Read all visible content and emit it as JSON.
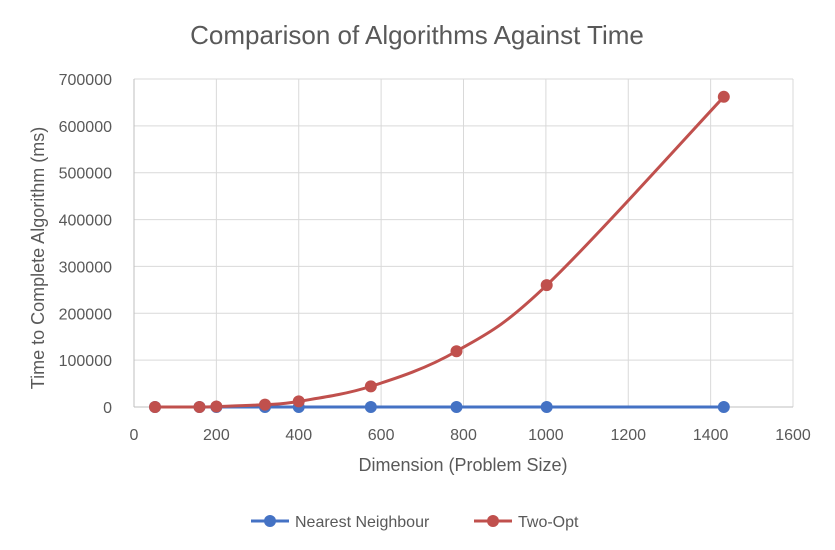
{
  "chart_data": {
    "type": "line",
    "title": "Comparison of Algorithms Against Time",
    "xlabel": "Dimension (Problem Size)",
    "ylabel": "Time to Complete Algorithm (ms)",
    "xlim": [
      0,
      1600
    ],
    "ylim": [
      0,
      700000
    ],
    "x_ticks": [
      "0",
      "200",
      "400",
      "600",
      "800",
      "1000",
      "1200",
      "1400",
      "1600"
    ],
    "y_ticks": [
      "0",
      "100000",
      "200000",
      "300000",
      "400000",
      "500000",
      "600000",
      "700000"
    ],
    "grid": true,
    "legend_position": "bottom",
    "series": [
      {
        "name": "Nearest Neighbour",
        "color": "#4472C4",
        "smooth": false,
        "points": [
          [
            51,
            0
          ],
          [
            159,
            0
          ],
          [
            200,
            0
          ],
          [
            318,
            0
          ],
          [
            400,
            0
          ],
          [
            575,
            0
          ],
          [
            783,
            0
          ],
          [
            1002,
            0
          ],
          [
            1432,
            0
          ]
        ]
      },
      {
        "name": "Two-Opt",
        "color": "#C0504D",
        "smooth": true,
        "points": [
          [
            51,
            0
          ],
          [
            159,
            0
          ],
          [
            200,
            1000
          ],
          [
            318,
            5000
          ],
          [
            400,
            12000
          ],
          [
            575,
            44000
          ],
          [
            783,
            119000
          ],
          [
            1002,
            260000
          ],
          [
            1432,
            662000
          ]
        ]
      }
    ]
  }
}
